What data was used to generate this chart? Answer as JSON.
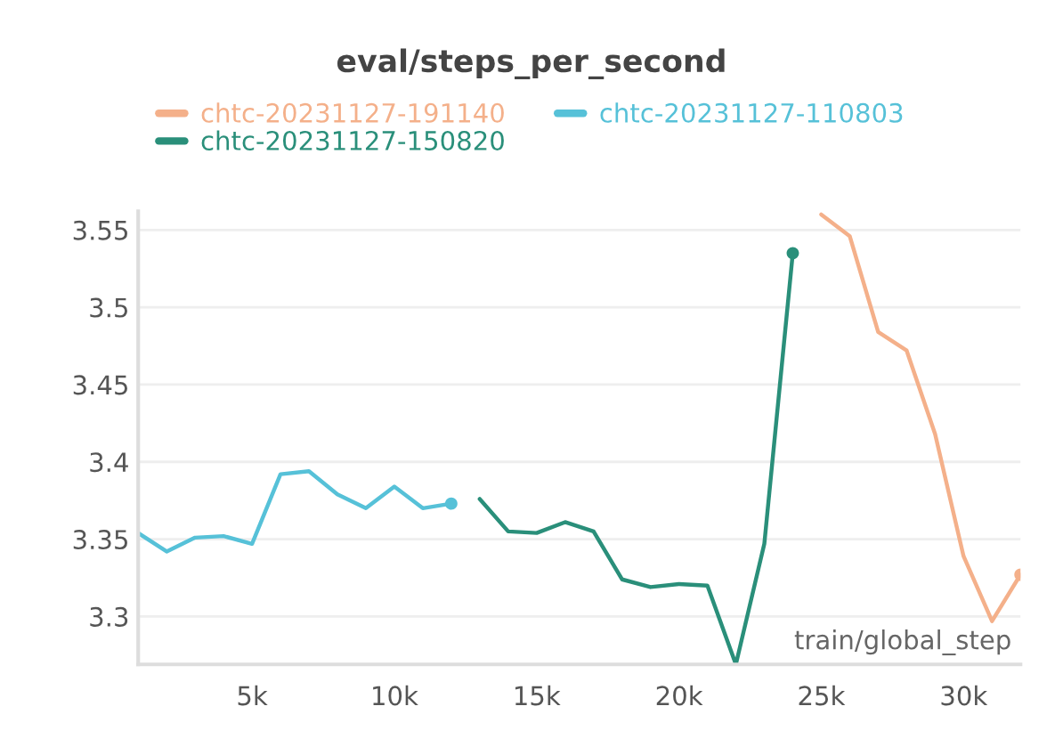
{
  "chart_data": {
    "type": "line",
    "title": "eval/steps_per_second",
    "xlabel": "train/global_step",
    "legend": "top",
    "grid": "y",
    "line_style": "solid",
    "xlim": [
      1000,
      32000
    ],
    "xticks": [
      {
        "value": 5000,
        "label": "5k"
      },
      {
        "value": 10000,
        "label": "10k"
      },
      {
        "value": 15000,
        "label": "15k"
      },
      {
        "value": 20000,
        "label": "20k"
      },
      {
        "value": 25000,
        "label": "25k"
      },
      {
        "value": 30000,
        "label": "30k"
      }
    ],
    "ylim": [
      3.269,
      3.562
    ],
    "yticks": [
      3.3,
      3.35,
      3.4,
      3.45,
      3.5,
      3.55
    ],
    "series": [
      {
        "name": "chtc-20231127-191140",
        "color": "#f4b08a",
        "x": [
          25000,
          26000,
          27000,
          28000,
          29000,
          30000,
          31000,
          32000
        ],
        "values": [
          3.56,
          3.546,
          3.484,
          3.472,
          3.418,
          3.339,
          3.297,
          3.327
        ]
      },
      {
        "name": "chtc-20231127-150820",
        "color": "#2a8f7a",
        "x": [
          13000,
          14000,
          15000,
          16000,
          17000,
          18000,
          19000,
          20000,
          21000,
          22000,
          23000,
          24000
        ],
        "values": [
          3.376,
          3.355,
          3.354,
          3.361,
          3.355,
          3.324,
          3.319,
          3.321,
          3.32,
          3.269,
          3.347,
          3.535
        ]
      },
      {
        "name": "chtc-20231127-110803",
        "color": "#56c1d8",
        "x": [
          1000,
          2000,
          3000,
          4000,
          5000,
          6000,
          7000,
          8000,
          9000,
          10000,
          11000,
          12000
        ],
        "values": [
          3.354,
          3.342,
          3.351,
          3.352,
          3.347,
          3.392,
          3.394,
          3.379,
          3.37,
          3.384,
          3.37,
          3.373
        ]
      }
    ]
  }
}
